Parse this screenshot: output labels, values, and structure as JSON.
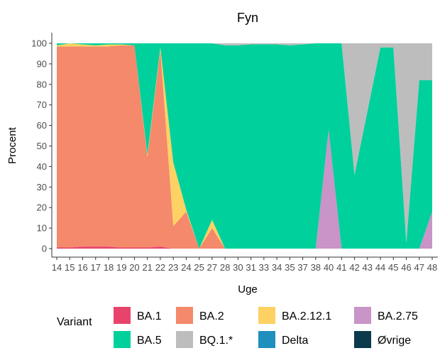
{
  "chart_data": {
    "type": "area",
    "stacked": true,
    "title": "Fyn",
    "xlabel": "Uge",
    "ylabel": "Procent",
    "ylim": [
      0,
      100
    ],
    "yticks": [
      "0",
      "10",
      "20",
      "30",
      "40",
      "50",
      "60",
      "70",
      "80",
      "90",
      "100"
    ],
    "categories": [
      "14",
      "15",
      "16",
      "17",
      "18",
      "19",
      "20",
      "21",
      "22",
      "23",
      "24",
      "25",
      "27",
      "28",
      "30",
      "31",
      "33",
      "34",
      "35",
      "37",
      "38",
      "40",
      "41",
      "42",
      "43",
      "44",
      "45",
      "46",
      "47",
      "48"
    ],
    "legend_title": "Variant",
    "legend_position": "bottom",
    "grid": false,
    "series": [
      {
        "name": "BA.1",
        "color": "#e8446b",
        "values": [
          0.5,
          0.5,
          1,
          1,
          1,
          0.5,
          0.5,
          0.5,
          1,
          0,
          0,
          0,
          0,
          0,
          0,
          0,
          0,
          0,
          0,
          0,
          0,
          0,
          0,
          0,
          0,
          0,
          0,
          0,
          0,
          0
        ]
      },
      {
        "name": "BA.2",
        "color": "#f4896b",
        "values": [
          98,
          98,
          97.5,
          97.5,
          97.5,
          98.5,
          98.5,
          44,
          96,
          11,
          18,
          0,
          10,
          0,
          0,
          0,
          0,
          0,
          0,
          0,
          0,
          0,
          0,
          0,
          0,
          0,
          0,
          0,
          0,
          0
        ]
      },
      {
        "name": "BA.2.12.1",
        "color": "#fdd263",
        "values": [
          0.5,
          1.5,
          1,
          0.5,
          1,
          0.5,
          0,
          1,
          1,
          31,
          1,
          0,
          4,
          0,
          0,
          0,
          0,
          0,
          0,
          0,
          0,
          0,
          0,
          0,
          0,
          0,
          0,
          0,
          0,
          0
        ]
      },
      {
        "name": "BA.2.75",
        "color": "#c994c7",
        "values": [
          0,
          0,
          0,
          0,
          0,
          0,
          0,
          0,
          0,
          0,
          0,
          0,
          0,
          0,
          0,
          0,
          0,
          0,
          0,
          0,
          0,
          58,
          0,
          0,
          0,
          0,
          0,
          0,
          0,
          18
        ]
      },
      {
        "name": "BA.5",
        "color": "#00d09c",
        "values": [
          1,
          0,
          0.5,
          1,
          0.5,
          0.5,
          1,
          54.5,
          2,
          58,
          81,
          100,
          86,
          99,
          99,
          99.5,
          99.5,
          99.5,
          99,
          99.5,
          100,
          42,
          100,
          36,
          67,
          98,
          98,
          3,
          82,
          64
        ]
      },
      {
        "name": "BQ.1.*",
        "color": "#bdbdbd",
        "values": [
          0,
          0,
          0,
          0,
          0,
          0,
          0,
          0,
          0,
          0,
          0,
          0,
          0,
          1,
          1,
          0.5,
          0.5,
          0.5,
          1,
          0.5,
          0,
          0,
          0,
          64,
          33,
          2,
          2,
          97,
          18,
          18
        ]
      },
      {
        "name": "Delta",
        "color": "#1f8fbd",
        "values": [
          0,
          0,
          0,
          0,
          0,
          0,
          0,
          0,
          0,
          0,
          0,
          0,
          0,
          0,
          0,
          0,
          0,
          0,
          0,
          0,
          0,
          0,
          0,
          0,
          0,
          0,
          0,
          0,
          0,
          0
        ]
      },
      {
        "name": "Øvrige",
        "color": "#0b3a4c",
        "values": [
          0,
          0,
          0,
          0,
          0,
          0,
          0,
          0,
          0,
          0,
          0,
          0,
          0,
          0,
          0,
          0,
          0,
          0,
          0,
          0,
          0,
          0,
          0,
          0,
          0,
          0,
          0,
          0,
          0,
          0
        ]
      }
    ]
  }
}
